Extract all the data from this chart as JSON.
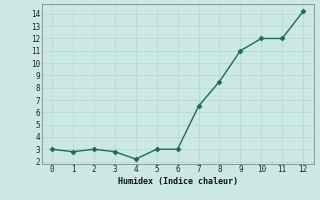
{
  "x": [
    0,
    1,
    2,
    3,
    4,
    5,
    6,
    7,
    8,
    9,
    10,
    11,
    12
  ],
  "y": [
    3.0,
    2.8,
    3.0,
    2.8,
    2.2,
    3.0,
    3.0,
    6.5,
    8.5,
    11.0,
    12.0,
    12.0,
    14.2
  ],
  "xlabel": "Humidex (Indice chaleur)",
  "xlim": [
    -0.5,
    12.5
  ],
  "ylim": [
    1.8,
    14.8
  ],
  "yticks": [
    2,
    3,
    4,
    5,
    6,
    7,
    8,
    9,
    10,
    11,
    12,
    13,
    14
  ],
  "xticks": [
    0,
    1,
    2,
    3,
    4,
    5,
    6,
    7,
    8,
    9,
    10,
    11,
    12
  ],
  "line_color": "#1a6b5a",
  "marker_color": "#1a6b5a",
  "bg_color": "#cce8e4",
  "grid_color": "#b0d8d2",
  "font_family": "monospace"
}
